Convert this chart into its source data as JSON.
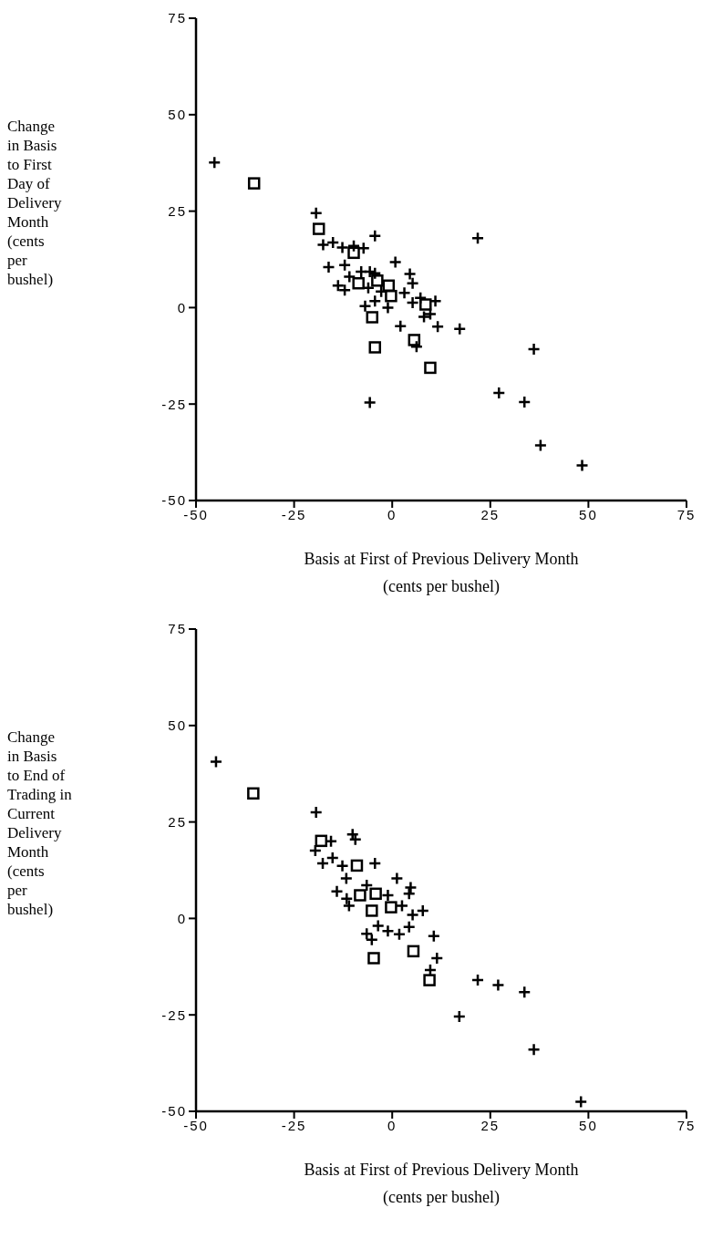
{
  "chart_data": [
    {
      "type": "scatter",
      "ylabel": "Change\nin Basis\nto First\nDay of\nDelivery\nMonth\n(cents\nper\nbushel)",
      "xlabel": "Basis at First of Previous Delivery Month\n(cents per bushel)",
      "xlim": [
        -50,
        75
      ],
      "xticks": [
        -50,
        -25,
        0,
        25,
        50,
        75
      ],
      "ylim": [
        -50,
        75
      ],
      "yticks": [
        -50,
        -25,
        0,
        25,
        50,
        75
      ],
      "grid": false,
      "legend": false,
      "series": [
        {
          "marker": "cross",
          "color": "#000000",
          "x": [
            -45.3,
            -19.4,
            -17.6,
            -15.1,
            -12.7,
            -9.8,
            -7.3,
            -4.4,
            -16.2,
            -12.1,
            -10.9,
            -13.8,
            -12.1,
            -7.9,
            -5.7,
            -4.4,
            0.8,
            4.5,
            5.2,
            3.1,
            7.2,
            5.2,
            11,
            9.7,
            8.1,
            -6.9,
            -4.4,
            -1.1,
            2.1,
            11.6,
            17.2,
            6.2,
            21.8,
            36.1,
            27.2,
            33.7,
            -5.7,
            37.8,
            48.4,
            -6.1,
            -2.8
          ],
          "values": [
            37.6,
            24.5,
            16.3,
            16.9,
            15.6,
            16,
            15.4,
            18.6,
            10.5,
            11,
            8,
            5.7,
            4.5,
            9.3,
            9.3,
            8.9,
            11.8,
            8.7,
            6.3,
            3.8,
            2.5,
            1.3,
            1.7,
            -1.7,
            -2.4,
            0.4,
            1.7,
            0,
            -4.8,
            -4.9,
            -5.5,
            -10.1,
            18,
            -10.8,
            -22.1,
            -24.5,
            -24.6,
            -35.7,
            -40.9,
            5.1,
            4.2
          ]
        },
        {
          "marker": "square",
          "color": "#000000",
          "x": [
            -35.2,
            -18.7,
            -9.8,
            -8.6,
            -3.8,
            -0.9,
            -0.3,
            8.5,
            -5.1,
            5.6,
            -4.4,
            9.7
          ],
          "values": [
            32.2,
            20.4,
            14.2,
            6.3,
            7,
            5.7,
            3,
            0.8,
            -2.5,
            -8.4,
            -10.3,
            -15.6
          ]
        }
      ]
    },
    {
      "type": "scatter",
      "ylabel": "Change\nin Basis\nto End of\nTrading in\nCurrent\nDelivery\nMonth\n(cents\nper\nbushel)",
      "xlabel": "Basis at First of Previous Delivery Month\n(cents per bushel)",
      "xlim": [
        -50,
        75
      ],
      "xticks": [
        -50,
        -25,
        0,
        25,
        50,
        75
      ],
      "ylim": [
        -50,
        75
      ],
      "yticks": [
        -50,
        -25,
        0,
        25,
        50,
        75
      ],
      "grid": false,
      "legend": false,
      "series": [
        {
          "marker": "cross",
          "color": "#000000",
          "x": [
            -44.9,
            -19.4,
            -10.1,
            -9.4,
            -15.6,
            -19.6,
            -17.7,
            -15.2,
            -12.7,
            -4.4,
            -11.7,
            1.2,
            4.7,
            4.3,
            -14.1,
            -11.6,
            -11,
            -6.5,
            -1.1,
            2.5,
            5.2,
            7.8,
            -3.6,
            -1.1,
            1.8,
            4.3,
            -6.5,
            -5.2,
            10.6,
            11.4,
            9.7,
            21.8,
            27,
            33.7,
            17.1,
            36.1,
            48.1
          ],
          "values": [
            40.6,
            27.5,
            21.8,
            20.5,
            20,
            17.6,
            14.3,
            15.7,
            13.6,
            14.3,
            10.4,
            10.4,
            8,
            6.4,
            7,
            5.1,
            3.3,
            8.6,
            6,
            3.3,
            0.9,
            2,
            -1.9,
            -3.3,
            -4.1,
            -2.2,
            -4,
            -5.5,
            -4.6,
            -10.3,
            -13.4,
            -16,
            -17.3,
            -19.1,
            -25.4,
            -34,
            -47.5
          ]
        },
        {
          "marker": "square",
          "color": "#000000",
          "x": [
            -35.4,
            -18.1,
            -9,
            -8.2,
            -4.2,
            -0.3,
            -5.2,
            5.4,
            -4.7,
            9.5
          ],
          "values": [
            32.4,
            20.1,
            13.7,
            6,
            6.4,
            2.9,
            2,
            -8.5,
            -10.3,
            -16
          ]
        }
      ]
    }
  ]
}
